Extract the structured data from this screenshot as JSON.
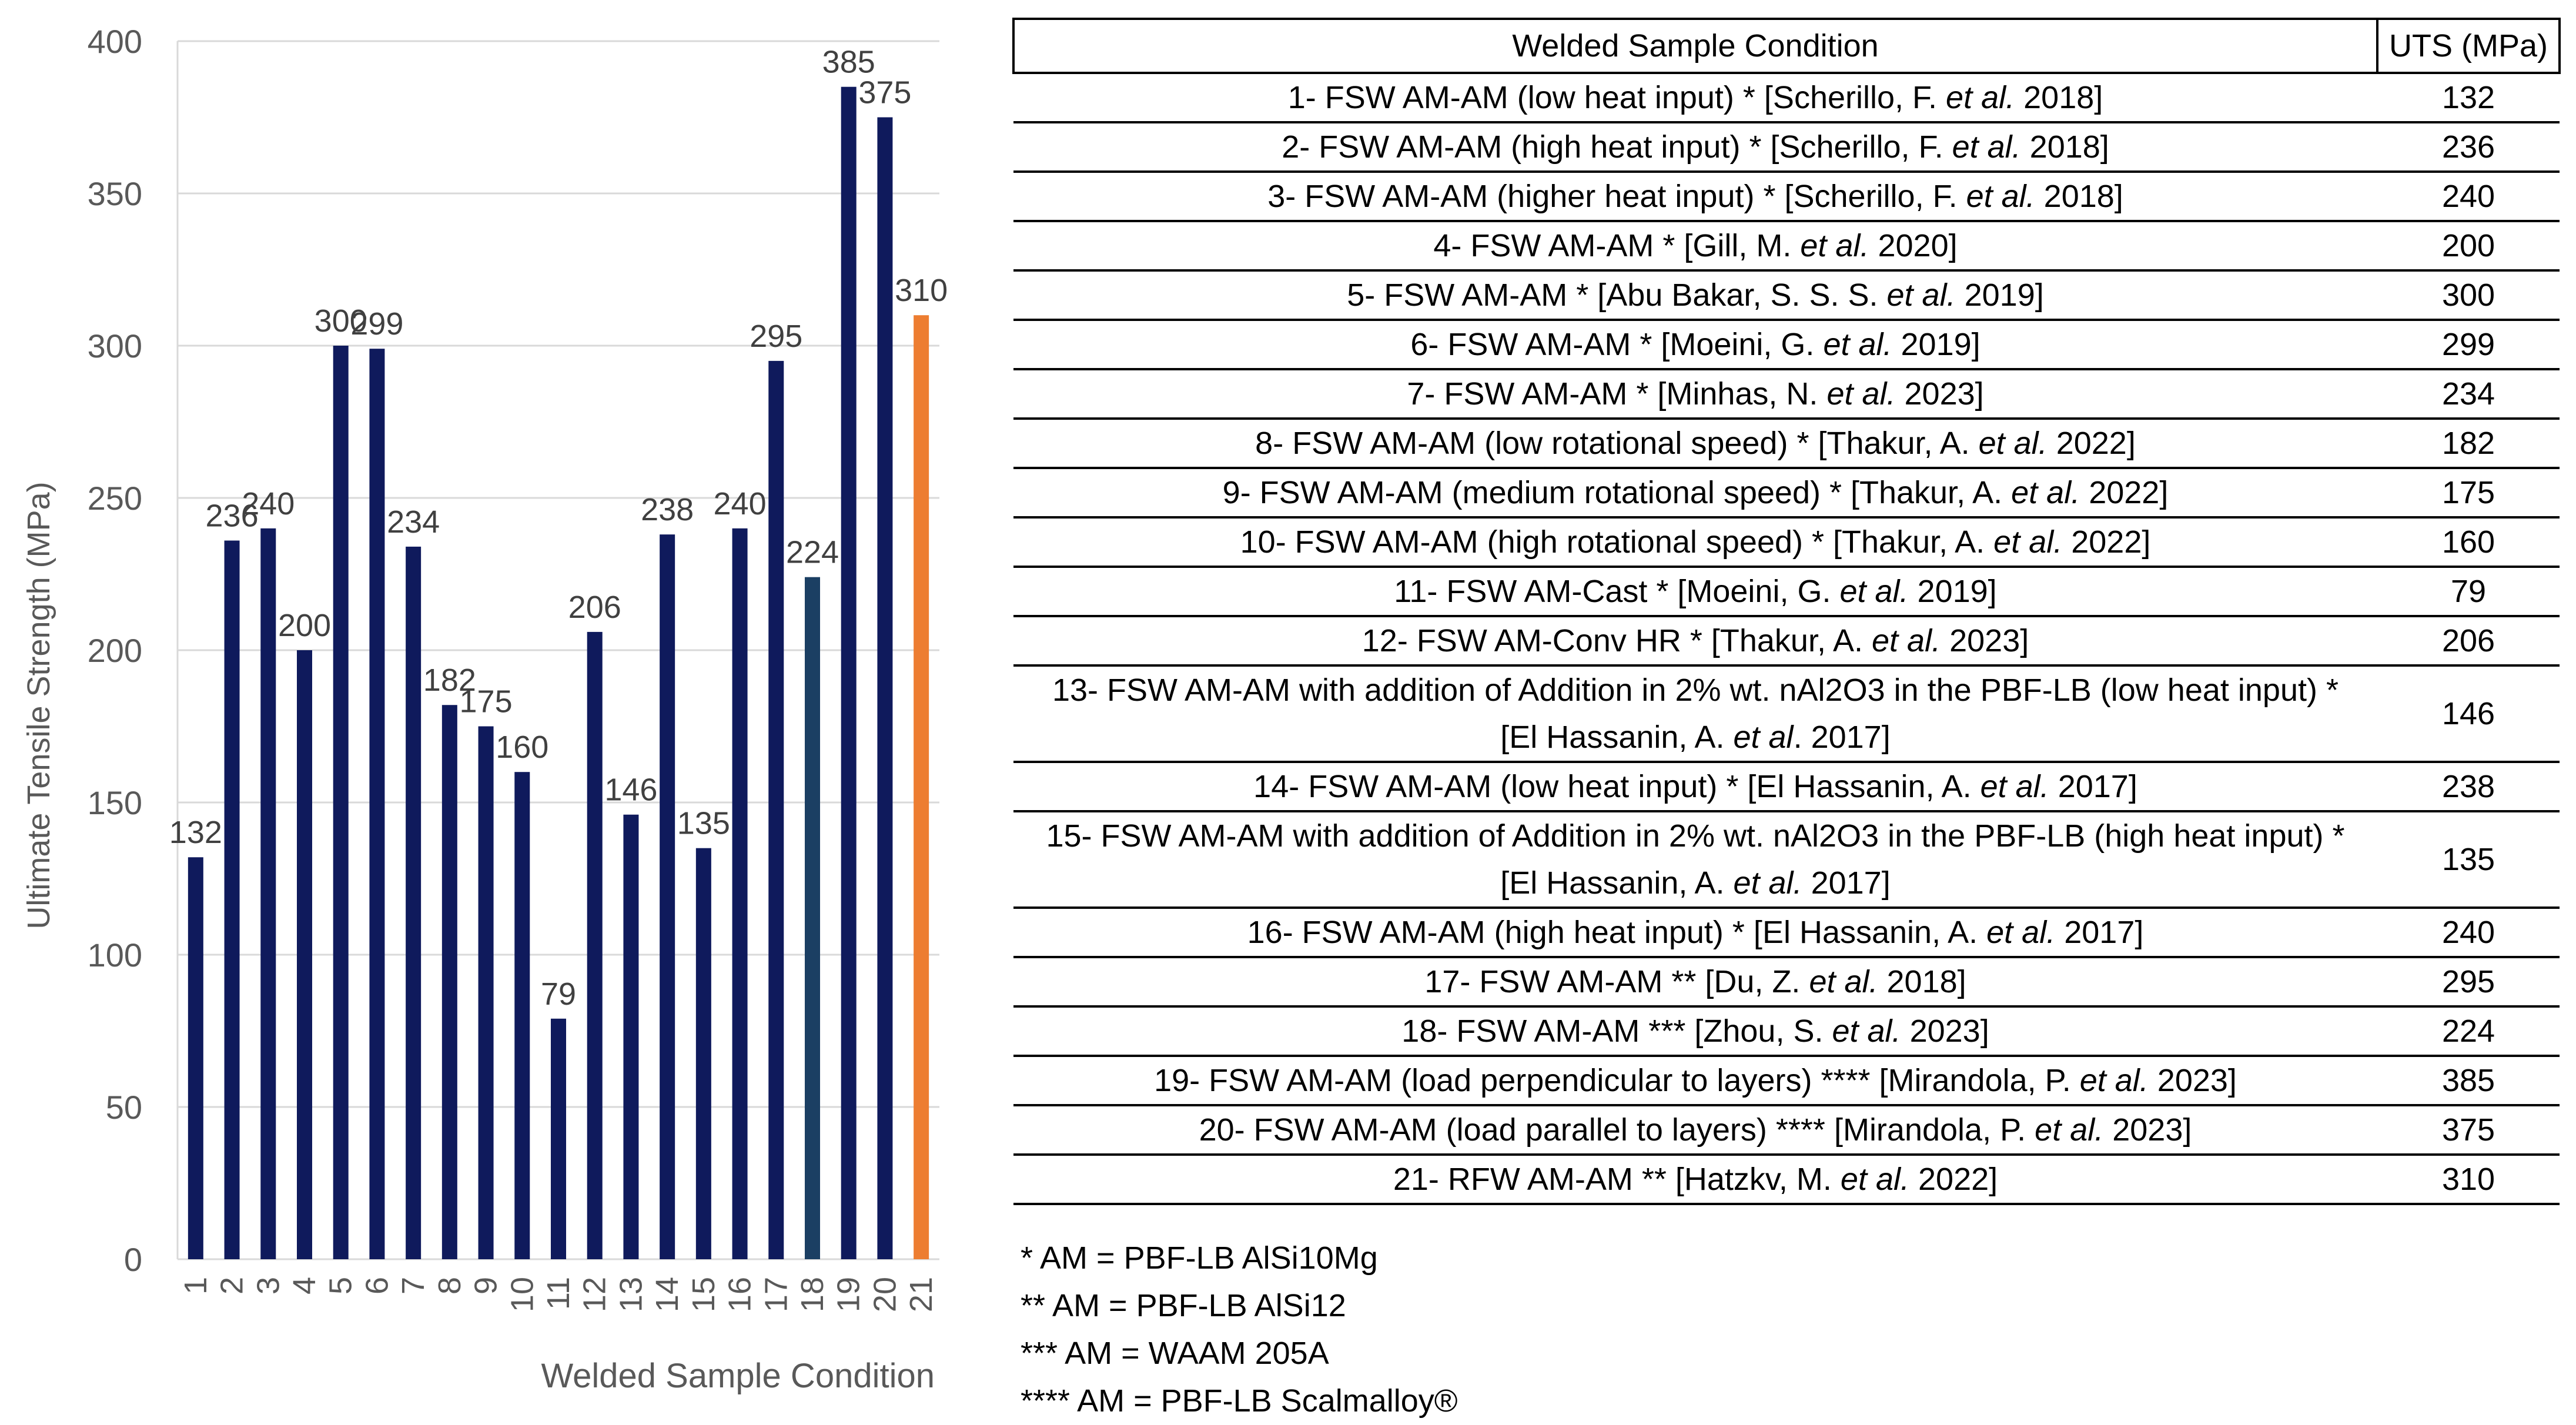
{
  "chart_data": {
    "type": "bar",
    "categories": [
      "1",
      "2",
      "3",
      "4",
      "5",
      "6",
      "7",
      "8",
      "9",
      "10",
      "11",
      "12",
      "13",
      "14",
      "15",
      "16",
      "17",
      "18",
      "19",
      "20",
      "21"
    ],
    "values": [
      132,
      236,
      240,
      200,
      300,
      299,
      234,
      182,
      175,
      160,
      79,
      206,
      146,
      238,
      135,
      240,
      295,
      224,
      385,
      375,
      310
    ],
    "data_labels": [
      "132",
      "236",
      "240",
      "200",
      "300",
      "299",
      "234",
      "182",
      "175",
      "160",
      "79",
      "206",
      "146",
      "238",
      "135",
      "240",
      "295",
      "224",
      "385",
      "375",
      "310"
    ],
    "bar_colors": [
      "#0f1a5c",
      "#0f1a5c",
      "#0f1a5c",
      "#0f1a5c",
      "#0f1a5c",
      "#0f1a5c",
      "#0f1a5c",
      "#0f1a5c",
      "#0f1a5c",
      "#0f1a5c",
      "#0f1a5c",
      "#0f1a5c",
      "#0f1a5c",
      "#0f1a5c",
      "#0f1a5c",
      "#0f1a5c",
      "#0f1a5c",
      "#1b3f63",
      "#0f1a5c",
      "#0f1a5c",
      "#ed7d31"
    ],
    "title": "",
    "xlabel": "Welded Sample Condition",
    "ylabel": "Ultimate Tensile Strength (MPa)",
    "ylim": [
      0,
      400
    ],
    "yticks": [
      0,
      50,
      100,
      150,
      200,
      250,
      300,
      350,
      400
    ],
    "grid": true
  },
  "table": {
    "header": {
      "condition": "Welded Sample Condition",
      "uts": "UTS (MPa)"
    },
    "rows": [
      {
        "pre": "1- FSW AM-AM (low heat input) * [Scherillo, F. ",
        "etal": "et al.",
        "post": " 2018]",
        "uts": "132"
      },
      {
        "pre": "2- FSW AM-AM (high heat input) * [Scherillo, F. ",
        "etal": "et al.",
        "post": " 2018]",
        "uts": "236"
      },
      {
        "pre": "3- FSW AM-AM (higher heat input) * [Scherillo, F. ",
        "etal": "et al.",
        "post": " 2018]",
        "uts": "240"
      },
      {
        "pre": "4- FSW AM-AM * [Gill, M. ",
        "etal": "et al.",
        "post": " 2020]",
        "uts": "200"
      },
      {
        "pre": "5- FSW AM-AM * [Abu Bakar, S. S. S. ",
        "etal": "et al.",
        "post": " 2019]",
        "uts": "300"
      },
      {
        "pre": "6- FSW AM-AM * [Moeini, G. ",
        "etal": "et al.",
        "post": " 2019]",
        "uts": "299"
      },
      {
        "pre": "7- FSW AM-AM * [Minhas, N. ",
        "etal": "et al.",
        "post": " 2023]",
        "uts": "234"
      },
      {
        "pre": "8- FSW AM-AM (low rotational speed) * [Thakur, A. ",
        "etal": "et al.",
        "post": " 2022]",
        "uts": "182"
      },
      {
        "pre": "9- FSW AM-AM (medium rotational speed) * [Thakur, A. ",
        "etal": "et al.",
        "post": " 2022]",
        "uts": "175"
      },
      {
        "pre": "10- FSW AM-AM (high rotational speed) * [Thakur, A. ",
        "etal": "et al.",
        "post": " 2022]",
        "uts": "160"
      },
      {
        "pre": "11- FSW AM-Cast * [Moeini, G. ",
        "etal": "et al.",
        "post": " 2019]",
        "uts": "79"
      },
      {
        "pre": "12- FSW AM-Conv HR * [Thakur, A. ",
        "etal": "et al.",
        "post": " 2023]",
        "uts": "206"
      },
      {
        "line1": "13- FSW AM-AM with addition of Addition in 2% wt. nAl2O3 in the PBF-LB (low heat input) *",
        "pre": "[El Hassanin, A. ",
        "etal": "et al",
        "post": ". 2017]",
        "uts": "146"
      },
      {
        "pre": "14- FSW AM-AM (low heat input) * [El Hassanin, A. ",
        "etal": "et al.",
        "post": " 2017]",
        "uts": "238"
      },
      {
        "line1": "15- FSW AM-AM with addition of Addition in 2% wt. nAl2O3 in the PBF-LB (high heat input) *",
        "pre": "[El Hassanin, A. ",
        "etal": "et al.",
        "post": " 2017]",
        "uts": "135"
      },
      {
        "pre": "16- FSW AM-AM (high heat input) * [El Hassanin, A. ",
        "etal": "et al.",
        "post": " 2017]",
        "uts": "240"
      },
      {
        "pre": "17- FSW AM-AM ** [Du, Z. ",
        "etal": "et al.",
        "post": " 2018]",
        "uts": "295"
      },
      {
        "pre": "18- FSW AM-AM *** [Zhou, S. ",
        "etal": "et al.",
        "post": " 2023]",
        "uts": "224"
      },
      {
        "pre": "19- FSW AM-AM (load perpendicular to layers) **** [Mirandola, P. ",
        "etal": "et al.",
        "post": " 2023]",
        "uts": "385"
      },
      {
        "pre": "20- FSW AM-AM (load parallel to layers) **** [Mirandola, P. ",
        "etal": "et al.",
        "post": " 2023]",
        "uts": "375"
      },
      {
        "pre": "21- RFW AM-AM ** [Hatzkv, M. ",
        "etal": "et al.",
        "post": " 2022]",
        "uts": "310"
      }
    ]
  },
  "notes": [
    "* AM = PBF-LB AlSi10Mg",
    "** AM = PBF-LB AlSi12",
    "*** AM = WAAM 205A",
    "**** AM = PBF-LB Scalmalloy®"
  ]
}
